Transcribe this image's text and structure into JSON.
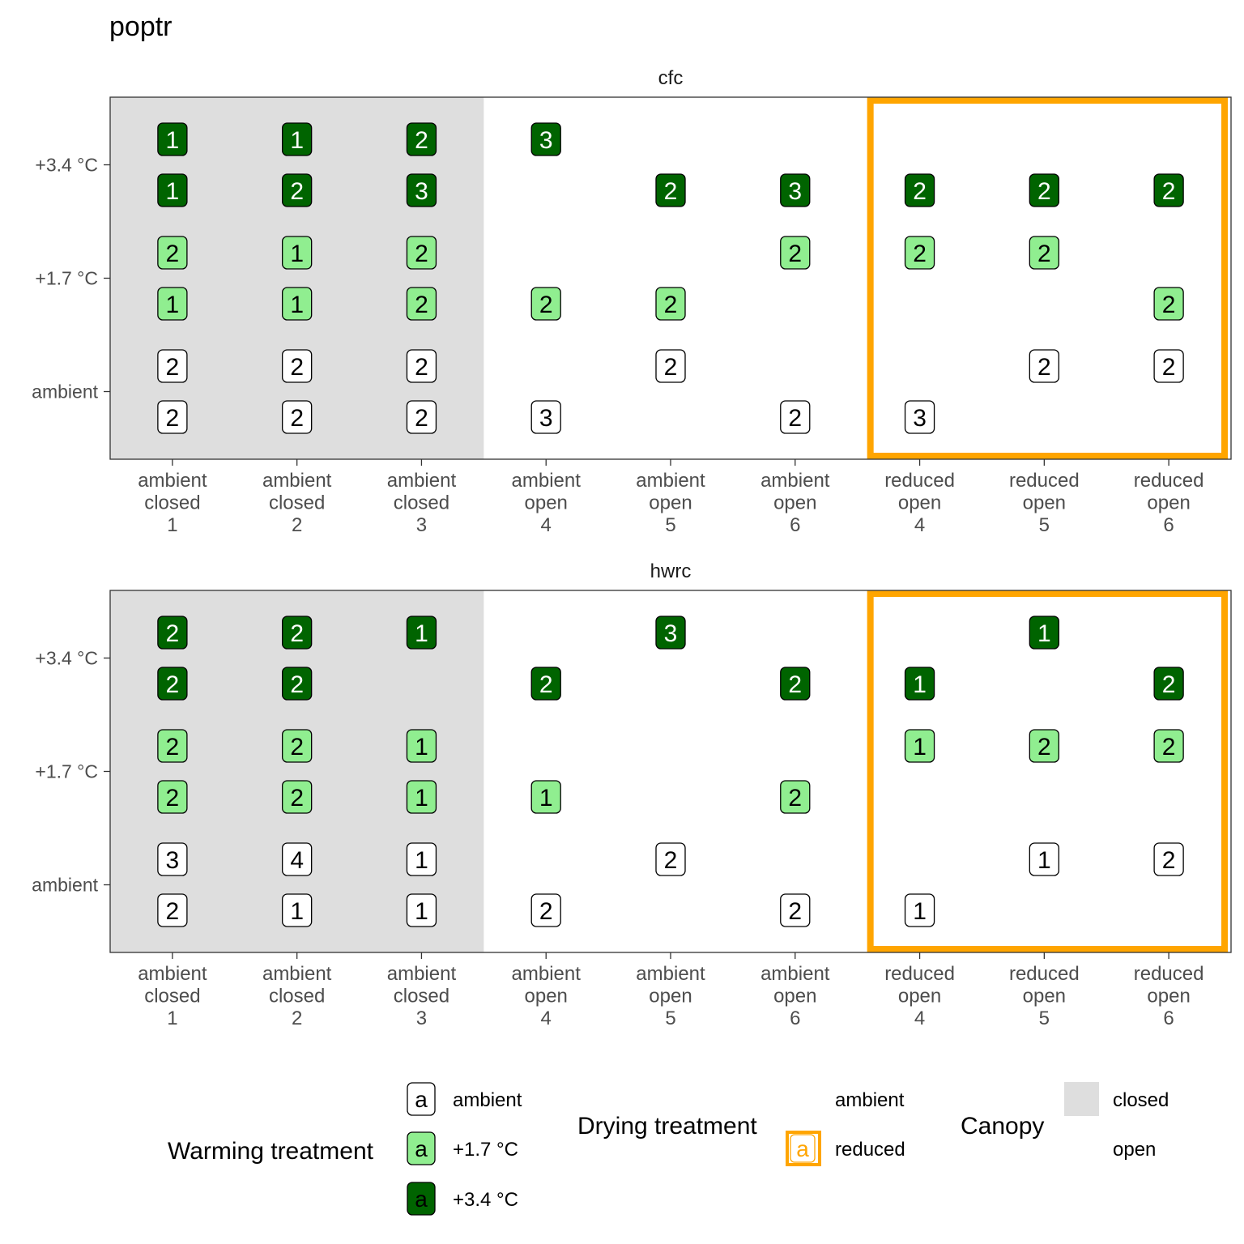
{
  "chart_data": {
    "type": "table",
    "title": "poptr",
    "colors": {
      "ambient": "#ffffff",
      "plus_1_7": "#90ee90",
      "plus_3_4": "#006400",
      "closed_canopy_bg": "#dedede",
      "reduced_drying_outline": "#ffa500",
      "label_text_on_dark": "#ffffff",
      "label_text_on_light": "#000000"
    },
    "y_tick_labels": [
      "+3.4 °C",
      "+1.7 °C",
      "ambient"
    ],
    "columns": [
      {
        "drying": "ambient",
        "canopy": "closed",
        "plot": "1"
      },
      {
        "drying": "ambient",
        "canopy": "closed",
        "plot": "2"
      },
      {
        "drying": "ambient",
        "canopy": "closed",
        "plot": "3"
      },
      {
        "drying": "ambient",
        "canopy": "open",
        "plot": "4"
      },
      {
        "drying": "ambient",
        "canopy": "open",
        "plot": "5"
      },
      {
        "drying": "ambient",
        "canopy": "open",
        "plot": "6"
      },
      {
        "drying": "reduced",
        "canopy": "open",
        "plot": "4"
      },
      {
        "drying": "reduced",
        "canopy": "open",
        "plot": "5"
      },
      {
        "drying": "reduced",
        "canopy": "open",
        "plot": "6"
      }
    ],
    "panels": [
      {
        "name": "cfc",
        "rows": [
          {
            "warming": "+3.4 °C",
            "values": [
              "1",
              "1",
              "2",
              "3",
              "",
              "",
              "",
              "",
              ""
            ]
          },
          {
            "warming": "+3.4 °C",
            "values": [
              "1",
              "2",
              "3",
              "",
              "2",
              "3",
              "2",
              "2",
              "2"
            ]
          },
          {
            "warming": "+1.7 °C",
            "values": [
              "2",
              "1",
              "2",
              "",
              "",
              "2",
              "2",
              "2",
              ""
            ]
          },
          {
            "warming": "+1.7 °C",
            "values": [
              "1",
              "1",
              "2",
              "2",
              "2",
              "",
              "",
              "",
              "2"
            ]
          },
          {
            "warming": "ambient",
            "values": [
              "2",
              "2",
              "2",
              "",
              "2",
              "",
              "",
              "2",
              "2"
            ]
          },
          {
            "warming": "ambient",
            "values": [
              "2",
              "2",
              "2",
              "3",
              "",
              "2",
              "3",
              "",
              ""
            ]
          }
        ]
      },
      {
        "name": "hwrc",
        "rows": [
          {
            "warming": "+3.4 °C",
            "values": [
              "2",
              "2",
              "1",
              "",
              "3",
              "",
              "",
              "1",
              ""
            ]
          },
          {
            "warming": "+3.4 °C",
            "values": [
              "2",
              "2",
              "",
              "2",
              "",
              "2",
              "1",
              "",
              "2"
            ]
          },
          {
            "warming": "+1.7 °C",
            "values": [
              "2",
              "2",
              "1",
              "",
              "",
              "",
              "1",
              "2",
              "2"
            ]
          },
          {
            "warming": "+1.7 °C",
            "values": [
              "2",
              "2",
              "1",
              "1",
              "",
              "2",
              "",
              "",
              ""
            ]
          },
          {
            "warming": "ambient",
            "values": [
              "3",
              "4",
              "1",
              "",
              "2",
              "",
              "",
              "1",
              "2"
            ]
          },
          {
            "warming": "ambient",
            "values": [
              "2",
              "1",
              "1",
              "2",
              "",
              "2",
              "1",
              "",
              ""
            ]
          }
        ]
      }
    ],
    "legend": {
      "position": "bottom",
      "warming": {
        "title": "Warming treatment",
        "key_glyph": "a",
        "entries": [
          "ambient",
          "+1.7 °C",
          "+3.4 °C"
        ]
      },
      "drying": {
        "title": "Drying treatment",
        "key_glyph": "a",
        "entries": [
          "ambient",
          "reduced"
        ]
      },
      "canopy": {
        "title": "Canopy",
        "entries": [
          "closed",
          "open"
        ]
      }
    }
  }
}
